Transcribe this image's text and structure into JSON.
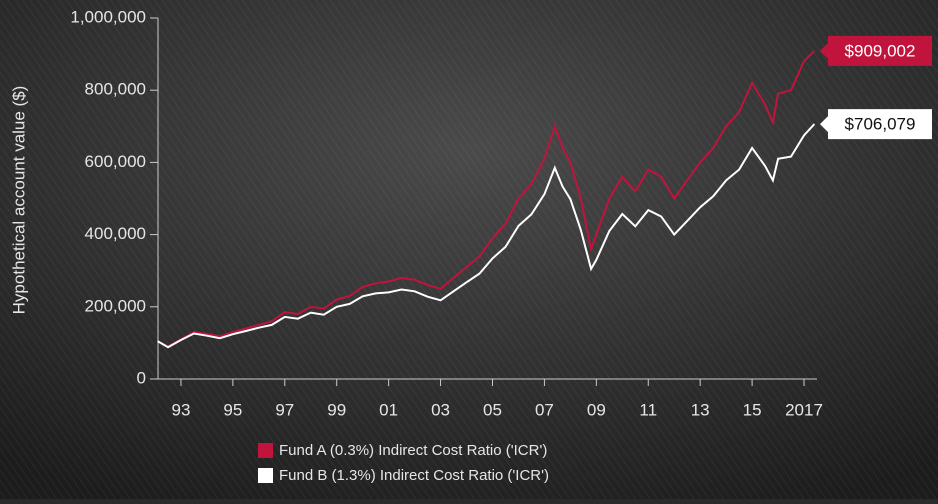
{
  "chart_data": {
    "type": "line",
    "y_label": "Hypothetical account value ($)",
    "x": [
      1992.1,
      1992.5,
      1993,
      1993.5,
      1994,
      1994.5,
      1995,
      1995.5,
      1996,
      1996.5,
      1997,
      1997.5,
      1998,
      1998.5,
      1999,
      1999.5,
      2000,
      2000.5,
      2001,
      2001.5,
      2002,
      2002.5,
      2003,
      2003.5,
      2004,
      2004.5,
      2005,
      2005.5,
      2006,
      2006.5,
      2007,
      2007.4,
      2007.7,
      2008,
      2008.4,
      2008.8,
      2009,
      2009.5,
      2010,
      2010.5,
      2011,
      2011.5,
      2012,
      2012.5,
      2013,
      2013.5,
      2014,
      2014.5,
      2015,
      2015.5,
      2015.8,
      2016,
      2016.5,
      2017,
      2017.4
    ],
    "series": [
      {
        "name": "Fund A (0.3%) Indirect Cost Ratio ('ICR')",
        "color": "#c0143c",
        "values": [
          105000,
          90000,
          110000,
          130000,
          125000,
          118000,
          130000,
          140000,
          150000,
          160000,
          185000,
          180000,
          200000,
          195000,
          220000,
          230000,
          255000,
          265000,
          270000,
          280000,
          275000,
          260000,
          250000,
          280000,
          310000,
          340000,
          390000,
          430000,
          500000,
          540000,
          610000,
          700000,
          640000,
          600000,
          500000,
          360000,
          400000,
          500000,
          560000,
          520000,
          580000,
          560000,
          500000,
          550000,
          600000,
          640000,
          700000,
          740000,
          820000,
          760000,
          710000,
          790000,
          800000,
          880000,
          909002
        ],
        "value_labels": [
          null,
          null,
          null,
          null,
          null,
          null,
          null,
          null,
          null,
          null,
          null,
          null,
          null,
          null,
          null,
          null,
          null,
          null,
          null,
          null,
          null,
          null,
          null,
          null,
          null,
          null,
          null,
          null,
          null,
          null,
          null,
          null,
          null,
          null,
          null,
          null,
          null,
          null,
          null,
          null,
          null,
          null,
          null,
          null,
          null,
          null,
          null,
          null,
          null,
          null,
          null,
          null,
          null,
          null,
          "$909,002"
        ]
      },
      {
        "name": "Fund B (1.3%) Indirect Cost Ratio ('ICR')",
        "color": "#ffffff",
        "values": [
          105000,
          88000,
          108000,
          126000,
          120000,
          113000,
          124000,
          133000,
          142000,
          150000,
          172000,
          167000,
          184000,
          178000,
          200000,
          208000,
          229000,
          237000,
          240000,
          248000,
          243000,
          228000,
          218000,
          243000,
          268000,
          292000,
          334000,
          366000,
          424000,
          456000,
          512000,
          585000,
          533000,
          498000,
          413000,
          305000,
          330000,
          410000,
          457000,
          423000,
          468000,
          450000,
          400000,
          438000,
          476000,
          506000,
          550000,
          580000,
          640000,
          590000,
          550000,
          610000,
          616000,
          675000,
          706079
        ],
        "value_labels": [
          null,
          null,
          null,
          null,
          null,
          null,
          null,
          null,
          null,
          null,
          null,
          null,
          null,
          null,
          null,
          null,
          null,
          null,
          null,
          null,
          null,
          null,
          null,
          null,
          null,
          null,
          null,
          null,
          null,
          null,
          null,
          null,
          null,
          null,
          null,
          null,
          null,
          null,
          null,
          null,
          null,
          null,
          null,
          null,
          null,
          null,
          null,
          null,
          null,
          null,
          null,
          null,
          null,
          null,
          "$706,079"
        ]
      }
    ],
    "xlim": [
      1992,
      2017.5
    ],
    "xticks": [
      {
        "value": 1993,
        "label": "93"
      },
      {
        "value": 1995,
        "label": "95"
      },
      {
        "value": 1997,
        "label": "97"
      },
      {
        "value": 1999,
        "label": "99"
      },
      {
        "value": 2001,
        "label": "01"
      },
      {
        "value": 2003,
        "label": "03"
      },
      {
        "value": 2005,
        "label": "05"
      },
      {
        "value": 2007,
        "label": "07"
      },
      {
        "value": 2009,
        "label": "09"
      },
      {
        "value": 2011,
        "label": "11"
      },
      {
        "value": 2013,
        "label": "13"
      },
      {
        "value": 2015,
        "label": "15"
      },
      2017
    ],
    "ylim": [
      0,
      1000000
    ],
    "yticks": [
      0,
      {
        "value": 200000,
        "label": "200,000"
      },
      {
        "value": 400000,
        "label": "400,000"
      },
      {
        "value": 600000,
        "label": "600,000"
      },
      {
        "value": 800000,
        "label": "800,000"
      },
      {
        "value": 1000000,
        "label": "1,000,000"
      }
    ]
  }
}
